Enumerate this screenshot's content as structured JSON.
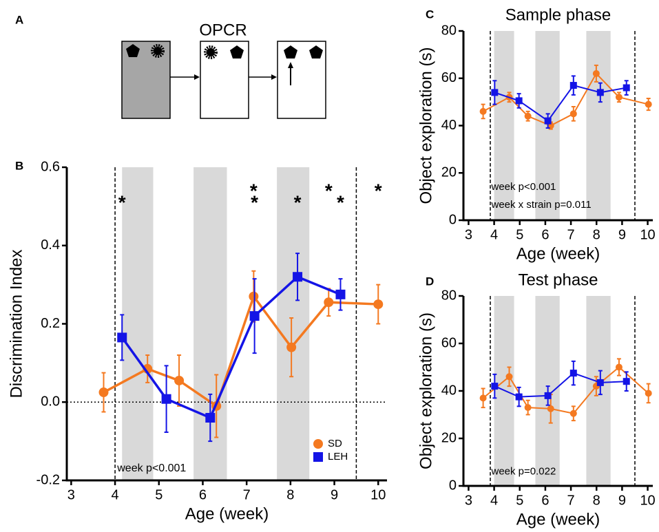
{
  "panel_a": {
    "label": "A",
    "title": "OPCR"
  },
  "chart_data": [
    {
      "type": "line",
      "panel": "B",
      "ylabel": "Discrimination Index",
      "xlabel": "Age (week)",
      "xlim": [
        2.9,
        10.2
      ],
      "ylim": [
        -0.2,
        0.6
      ],
      "xticks": [
        3,
        4,
        5,
        6,
        7,
        8,
        9,
        10
      ],
      "yticks": [
        -0.2,
        {
          "value": 0,
          "label": "0.0"
        },
        0.2,
        0.4,
        0.6
      ],
      "bands": [
        [
          4.16,
          4.87
        ],
        [
          5.79,
          6.55
        ],
        [
          7.69,
          8.43
        ]
      ],
      "vlines": [
        4.0,
        9.5
      ],
      "hline": 0,
      "legend": "lower right",
      "series": [
        {
          "name": "SD",
          "color": "#f47920",
          "marker": "circle",
          "x": [
            3.74,
            4.74,
            5.46,
            6.31,
            7.16,
            8.02,
            8.87,
            10.0
          ],
          "values": [
            0.025,
            0.085,
            0.055,
            -0.01,
            0.27,
            0.14,
            0.255,
            0.25
          ],
          "errors": [
            0.05,
            0.035,
            0.065,
            0.08,
            0.065,
            0.075,
            0.035,
            0.05
          ]
        },
        {
          "name": "LEH",
          "color": "#1414e6",
          "marker": "square",
          "x": [
            4.16,
            5.17,
            6.17,
            7.18,
            8.16,
            9.14
          ],
          "values": [
            0.165,
            0.008,
            -0.04,
            0.22,
            0.32,
            0.275
          ],
          "errors": [
            0.058,
            0.085,
            0.06,
            0.095,
            0.06,
            0.04
          ]
        }
      ],
      "annotations": [
        {
          "text": "*",
          "x": 4.16,
          "y": 0.517,
          "color": "#1414e6"
        },
        {
          "text": "*",
          "x": 7.16,
          "y": 0.547,
          "color": "#f47920"
        },
        {
          "text": "*",
          "x": 7.18,
          "y": 0.517,
          "color": "#1414e6"
        },
        {
          "text": "*",
          "x": 8.16,
          "y": 0.517,
          "color": "#1414e6"
        },
        {
          "text": "*",
          "x": 8.87,
          "y": 0.547,
          "color": "#f47920"
        },
        {
          "text": "*",
          "x": 9.14,
          "y": 0.517,
          "color": "#1414e6"
        },
        {
          "text": "*",
          "x": 10.0,
          "y": 0.547,
          "color": "#f47920"
        },
        {
          "text": "week p<0.001",
          "x": 4.05,
          "y": -0.17,
          "color": "#000000"
        }
      ]
    },
    {
      "type": "line",
      "panel": "C",
      "title": "Sample phase",
      "ylabel": "Object exploration (s)",
      "xlabel": "Age (week)",
      "xlim": [
        2.8,
        10.2
      ],
      "ylim": [
        0,
        80
      ],
      "xticks": [
        3,
        4,
        5,
        6,
        7,
        8,
        9,
        10
      ],
      "yticks": [
        0,
        20,
        40,
        60,
        80
      ],
      "bands": [
        [
          4.0,
          4.78
        ],
        [
          5.61,
          6.56
        ],
        [
          7.6,
          8.55
        ]
      ],
      "vlines": [
        3.85,
        9.5
      ],
      "series": [
        {
          "color": "#f47920",
          "marker": "circle",
          "x": [
            3.57,
            4.59,
            5.32,
            6.21,
            7.1,
            7.99,
            8.88,
            10.03
          ],
          "values": [
            46,
            52,
            44,
            40,
            45,
            62,
            52,
            49
          ],
          "errors": [
            3,
            2,
            2,
            1.5,
            3,
            3.5,
            2,
            2.5
          ]
        },
        {
          "color": "#1414e6",
          "marker": "square",
          "x": [
            4.02,
            4.97,
            6.1,
            7.1,
            8.15,
            9.17
          ],
          "values": [
            54,
            50.5,
            42,
            57,
            54,
            56
          ],
          "errors": [
            5,
            3,
            3,
            4,
            4,
            3
          ]
        }
      ],
      "annotations": [
        {
          "text": "week p<0.001",
          "x": 3.89,
          "y": 14,
          "color": "#000000"
        },
        {
          "text": "week x strain p=0.011",
          "x": 3.89,
          "y": 6.4,
          "color": "#000000"
        }
      ]
    },
    {
      "type": "line",
      "panel": "D",
      "title": "Test phase",
      "ylabel": "Object exploration (s)",
      "xlabel": "Age (week)",
      "xlim": [
        2.8,
        10.2
      ],
      "ylim": [
        0,
        80
      ],
      "xticks": [
        3,
        4,
        5,
        6,
        7,
        8,
        9,
        10
      ],
      "yticks": [
        0,
        20,
        40,
        60,
        80
      ],
      "bands": [
        [
          4.0,
          4.78
        ],
        [
          5.61,
          6.56
        ],
        [
          7.6,
          8.55
        ]
      ],
      "vlines": [
        3.85,
        9.5
      ],
      "series": [
        {
          "color": "#f47920",
          "marker": "circle",
          "x": [
            3.57,
            4.59,
            5.32,
            6.21,
            7.1,
            7.99,
            8.88,
            10.03
          ],
          "values": [
            37,
            46,
            33,
            32.5,
            30.5,
            42,
            50,
            39
          ],
          "errors": [
            4,
            4,
            3,
            6,
            3,
            4,
            3.5,
            4
          ]
        },
        {
          "color": "#1414e6",
          "marker": "square",
          "x": [
            4.02,
            4.97,
            6.1,
            7.1,
            8.15,
            9.17
          ],
          "values": [
            42,
            37.5,
            38,
            47.5,
            43.5,
            44
          ],
          "errors": [
            5,
            4,
            4,
            5,
            5,
            4
          ]
        }
      ],
      "annotations": [
        {
          "text": "week p=0.022",
          "x": 3.89,
          "y": 6,
          "color": "#000000"
        }
      ]
    }
  ]
}
